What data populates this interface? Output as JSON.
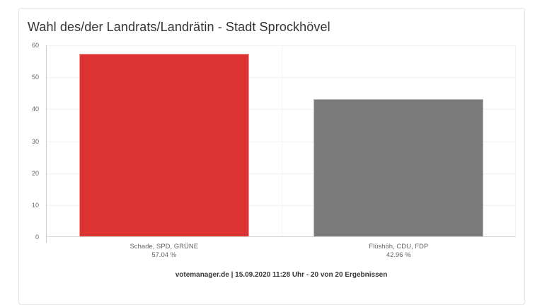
{
  "card": {
    "title": "Wahl des/der Landrats/Landrätin - Stadt Sprockhövel"
  },
  "chart_data": {
    "type": "bar",
    "title": "Wahl des/der Landrats/Landrätin - Stadt Sprockhövel",
    "categories": [
      "Schade, SPD, GRÜNE",
      "Flüshöh, CDU, FDP"
    ],
    "values": [
      57.04,
      42.96
    ],
    "value_labels": [
      "57.04 %",
      "42.96 %"
    ],
    "colors": [
      "#dc3332",
      "#7a7a7a"
    ],
    "ylim": [
      0,
      60
    ],
    "ytick_step": 10,
    "yticks": [
      0,
      10,
      20,
      30,
      40,
      50,
      60
    ],
    "grid": true,
    "legend": "none",
    "xlabel": "",
    "ylabel": ""
  },
  "footer": {
    "text": "votemanager.de | 15.09.2020 11:28 Uhr - 20 von 20 Ergebnissen"
  }
}
